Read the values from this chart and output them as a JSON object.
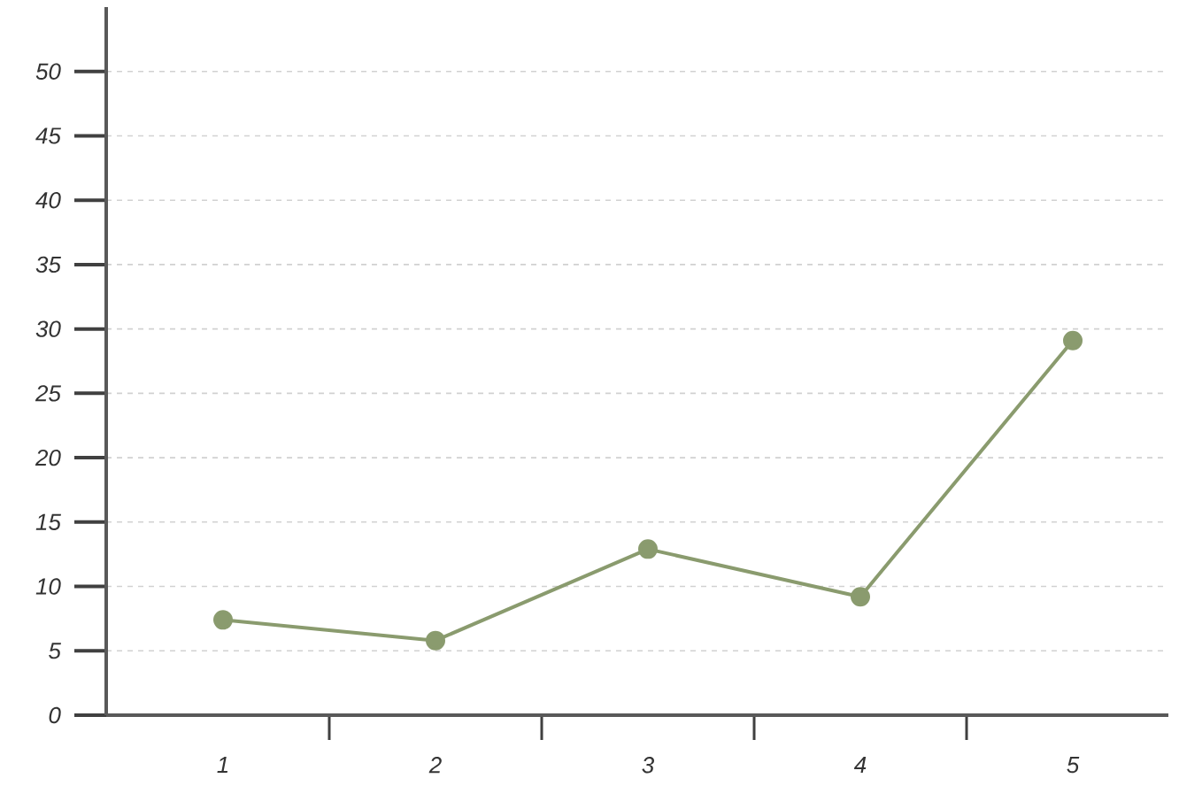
{
  "chart_data": {
    "type": "line",
    "categories": [
      "1",
      "2",
      "3",
      "4",
      "5"
    ],
    "series": [
      {
        "color": "#8a9b6e",
        "values": [
          7.4,
          5.8,
          12.9,
          9.2,
          29.1
        ]
      }
    ],
    "ylim": [
      0,
      55
    ],
    "yticks": [
      0,
      5,
      10,
      15,
      20,
      25,
      30,
      35,
      40,
      45,
      50
    ],
    "grid": "y",
    "marker": "circle",
    "line_style": "solid"
  }
}
